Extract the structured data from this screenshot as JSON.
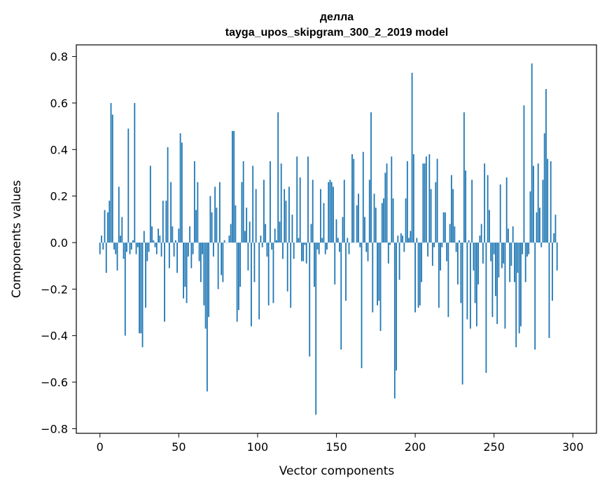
{
  "chart_data": {
    "type": "bar",
    "title": "делла",
    "subtitle": "tayga_upos_skipgram_300_2_2019 model",
    "xlabel": "Vector components",
    "ylabel": "Components values",
    "xlim": [
      -15,
      315
    ],
    "ylim": [
      -0.82,
      0.85
    ],
    "xticks": [
      0,
      50,
      100,
      150,
      200,
      250,
      300
    ],
    "xtick_labels": [
      "0",
      "50",
      "100",
      "150",
      "200",
      "250",
      "300"
    ],
    "yticks": [
      -0.8,
      -0.6,
      -0.4,
      -0.2,
      0.0,
      0.2,
      0.4,
      0.6,
      0.8
    ],
    "ytick_labels": [
      "−0.8",
      "−0.6",
      "−0.4",
      "−0.2",
      "0.0",
      "0.2",
      "0.4",
      "0.6",
      "0.8"
    ],
    "grid": false,
    "bar_color": "#1f77b4",
    "values": [
      -0.05,
      0.03,
      -0.03,
      0.14,
      -0.13,
      0.13,
      0.18,
      0.6,
      0.55,
      -0.03,
      -0.05,
      -0.12,
      0.24,
      0.03,
      0.11,
      -0.07,
      -0.4,
      -0.04,
      0.49,
      -0.05,
      -0.03,
      0.01,
      0.6,
      -0.05,
      -0.02,
      -0.39,
      -0.39,
      -0.45,
      0.05,
      -0.28,
      -0.08,
      -0.04,
      0.33,
      0.07,
      0.01,
      -0.02,
      -0.05,
      0.06,
      0.03,
      -0.06,
      0.18,
      -0.34,
      0.18,
      0.41,
      -0.11,
      0.26,
      0.07,
      -0.06,
      0.01,
      -0.13,
      0.06,
      0.47,
      0.43,
      -0.24,
      -0.19,
      -0.26,
      -0.06,
      0.07,
      -0.11,
      -0.05,
      0.35,
      0.14,
      0.26,
      -0.08,
      -0.17,
      -0.05,
      -0.27,
      -0.37,
      -0.64,
      -0.32,
      0.2,
      0.13,
      -0.06,
      0.24,
      0.15,
      -0.2,
      0.26,
      -0.14,
      -0.17,
      0.01,
      0.0,
      0.0,
      0.03,
      0.08,
      0.48,
      0.48,
      0.16,
      -0.34,
      -0.29,
      -0.19,
      0.26,
      0.35,
      0.05,
      0.15,
      -0.12,
      0.09,
      -0.36,
      0.33,
      -0.17,
      0.23,
      -0.0,
      -0.33,
      0.03,
      -0.02,
      0.27,
      0.08,
      -0.06,
      -0.27,
      0.35,
      -0.03,
      -0.26,
      0.06,
      0.01,
      0.56,
      0.09,
      0.34,
      -0.07,
      0.23,
      0.18,
      -0.21,
      0.24,
      -0.28,
      0.12,
      -0.07,
      -0.0,
      0.37,
      0.02,
      0.28,
      -0.08,
      -0.08,
      -0.01,
      -0.09,
      0.37,
      -0.49,
      0.08,
      0.27,
      -0.19,
      -0.74,
      -0.03,
      -0.05,
      0.23,
      0.02,
      0.17,
      -0.05,
      -0.03,
      0.26,
      0.27,
      0.26,
      0.24,
      -0.18,
      0.1,
      0.02,
      -0.04,
      -0.46,
      0.11,
      0.27,
      -0.25,
      0.02,
      -0.05,
      0.0,
      0.38,
      0.36,
      0.0,
      0.16,
      0.21,
      -0.02,
      -0.54,
      0.39,
      0.11,
      -0.04,
      -0.08,
      0.27,
      0.56,
      -0.3,
      0.21,
      0.15,
      -0.27,
      -0.25,
      -0.38,
      0.17,
      0.19,
      0.3,
      0.34,
      -0.09,
      -0.01,
      0.37,
      0.19,
      -0.67,
      -0.55,
      0.03,
      -0.16,
      0.04,
      0.03,
      -0.04,
      0.19,
      0.35,
      0.02,
      0.05,
      0.73,
      0.38,
      -0.3,
      0.02,
      -0.28,
      -0.27,
      -0.17,
      0.34,
      0.34,
      0.37,
      -0.06,
      0.38,
      0.23,
      -0.1,
      -0.02,
      0.26,
      0.36,
      -0.28,
      -0.12,
      -0.02,
      0.13,
      0.13,
      -0.08,
      -0.32,
      0.08,
      0.29,
      0.23,
      0.07,
      -0.04,
      -0.18,
      0.01,
      -0.26,
      -0.61,
      0.56,
      0.31,
      -0.33,
      0.01,
      -0.37,
      0.27,
      -0.12,
      -0.26,
      -0.36,
      -0.18,
      0.03,
      0.08,
      -0.09,
      0.34,
      -0.56,
      0.29,
      0.14,
      -0.08,
      -0.32,
      -0.05,
      -0.23,
      -0.35,
      -0.15,
      0.25,
      -0.11,
      -0.09,
      -0.37,
      0.28,
      0.06,
      -0.17,
      -0.1,
      0.07,
      -0.17,
      -0.45,
      -0.13,
      -0.39,
      -0.36,
      -0.05,
      0.59,
      -0.17,
      -0.06,
      -0.05,
      0.22,
      0.77,
      0.33,
      -0.46,
      0.13,
      0.34,
      0.15,
      -0.02,
      0.27,
      0.47,
      0.66,
      0.36,
      -0.41,
      0.35,
      -0.25,
      0.04,
      0.12,
      -0.12
    ]
  }
}
